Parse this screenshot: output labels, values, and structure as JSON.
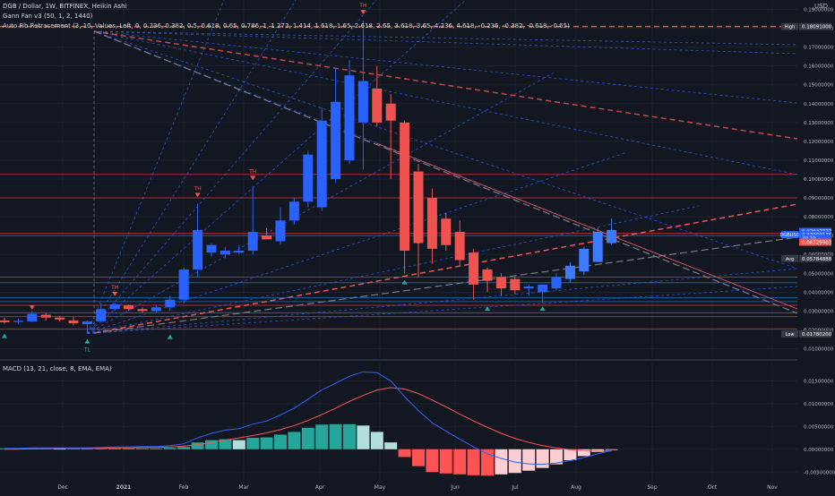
{
  "header": {
    "symbol_line": "DGB / Dollar, 1W, BITFINEX, Heikin Ashi",
    "gann_line": "Gann Fan v3 (50, 1, 2, 1440)",
    "fib_line": "Auto Fib Retracement (3, 10, Values, Left, 0, 0.236, 0.382, 0.5, 0.618, 0.65, 0.786, 1, 1.272, 1.414, 1.618, 1.65, 2.618, 2.65, 3.618, 3.65, 4.236, 4.618, -0.236, -0.382, -0.618, -0.65)",
    "macd_line": "MACD (13, 21, close, 8, EMA, EMA)",
    "currency": "USD"
  },
  "colors": {
    "background": "#131722",
    "up": "#2962ff",
    "up_bright": "#3d7bff",
    "down": "#ef5350",
    "grid": "#1e222d",
    "fib_red": "#b22833",
    "fib_blue": "#2196f3",
    "macd_line": "#2962ff",
    "signal_line": "#ff5252",
    "hist_up_strong": "#26a69a",
    "hist_up_weak": "#b2dfdb",
    "hist_down_strong": "#ff5252",
    "hist_down_weak": "#ffcdd2"
  },
  "chart_data": [
    {
      "type": "candlestick",
      "title": "DGB / Dollar, 1W, BITFINEX, Heikin Ashi",
      "x_ticks": [
        "Dec",
        "2021",
        "Feb",
        "Mar",
        "Apr",
        "May",
        "Jun",
        "Jul",
        "Aug",
        "Sep",
        "Oct",
        "Nov"
      ],
      "y_ticks": [
        "0.19000000",
        "0.18000000",
        "0.17000000",
        "0.16000000",
        "0.15000000",
        "0.14000000",
        "0.13000000",
        "0.12000000",
        "0.11000000",
        "0.10000000",
        "0.09000000",
        "0.08000000",
        "0.07000000",
        "0.06000000",
        "0.05000000",
        "0.04000000",
        "0.03000000",
        "0.02000000",
        "0.01000000"
      ],
      "ylim": [
        0.005,
        0.195
      ],
      "candles": [
        {
          "o": 0.025,
          "h": 0.0265,
          "l": 0.0232,
          "c": 0.024
        },
        {
          "o": 0.0242,
          "h": 0.026,
          "l": 0.023,
          "c": 0.0248
        },
        {
          "o": 0.0245,
          "h": 0.03,
          "l": 0.024,
          "c": 0.0285
        },
        {
          "o": 0.028,
          "h": 0.029,
          "l": 0.025,
          "c": 0.0265
        },
        {
          "o": 0.0265,
          "h": 0.0275,
          "l": 0.0245,
          "c": 0.0255
        },
        {
          "o": 0.025,
          "h": 0.0268,
          "l": 0.0225,
          "c": 0.0235
        },
        {
          "o": 0.023,
          "h": 0.025,
          "l": 0.018,
          "c": 0.0245
        },
        {
          "o": 0.0245,
          "h": 0.034,
          "l": 0.024,
          "c": 0.031
        },
        {
          "o": 0.031,
          "h": 0.0345,
          "l": 0.03,
          "c": 0.0335
        },
        {
          "o": 0.033,
          "h": 0.0335,
          "l": 0.03,
          "c": 0.031
        },
        {
          "o": 0.031,
          "h": 0.032,
          "l": 0.029,
          "c": 0.03
        },
        {
          "o": 0.03,
          "h": 0.033,
          "l": 0.029,
          "c": 0.032
        },
        {
          "o": 0.032,
          "h": 0.038,
          "l": 0.03,
          "c": 0.036
        },
        {
          "o": 0.036,
          "h": 0.053,
          "l": 0.034,
          "c": 0.052
        },
        {
          "o": 0.052,
          "h": 0.087,
          "l": 0.048,
          "c": 0.073
        },
        {
          "o": 0.061,
          "h": 0.066,
          "l": 0.059,
          "c": 0.065
        },
        {
          "o": 0.06,
          "h": 0.064,
          "l": 0.058,
          "c": 0.062
        },
        {
          "o": 0.061,
          "h": 0.065,
          "l": 0.06,
          "c": 0.062
        },
        {
          "o": 0.062,
          "h": 0.096,
          "l": 0.06,
          "c": 0.072
        },
        {
          "o": 0.07,
          "h": 0.074,
          "l": 0.069,
          "c": 0.068
        },
        {
          "o": 0.067,
          "h": 0.085,
          "l": 0.065,
          "c": 0.078
        },
        {
          "o": 0.078,
          "h": 0.09,
          "l": 0.076,
          "c": 0.088
        },
        {
          "o": 0.088,
          "h": 0.115,
          "l": 0.085,
          "c": 0.113
        },
        {
          "o": 0.085,
          "h": 0.138,
          "l": 0.083,
          "c": 0.131
        },
        {
          "o": 0.1,
          "h": 0.159,
          "l": 0.098,
          "c": 0.141
        },
        {
          "o": 0.11,
          "h": 0.163,
          "l": 0.108,
          "c": 0.155
        },
        {
          "o": 0.13,
          "h": 0.184,
          "l": 0.105,
          "c": 0.152
        },
        {
          "o": 0.148,
          "h": 0.16,
          "l": 0.128,
          "c": 0.13
        },
        {
          "o": 0.14,
          "h": 0.145,
          "l": 0.1,
          "c": 0.131
        },
        {
          "o": 0.13,
          "h": 0.131,
          "l": 0.05,
          "c": 0.062
        },
        {
          "o": 0.104,
          "h": 0.108,
          "l": 0.048,
          "c": 0.066
        },
        {
          "o": 0.09,
          "h": 0.095,
          "l": 0.055,
          "c": 0.063
        },
        {
          "o": 0.079,
          "h": 0.082,
          "l": 0.062,
          "c": 0.065
        },
        {
          "o": 0.072,
          "h": 0.078,
          "l": 0.054,
          "c": 0.057
        },
        {
          "o": 0.061,
          "h": 0.063,
          "l": 0.036,
          "c": 0.044
        },
        {
          "o": 0.052,
          "h": 0.053,
          "l": 0.04,
          "c": 0.046
        },
        {
          "o": 0.048,
          "h": 0.05,
          "l": 0.038,
          "c": 0.042
        },
        {
          "o": 0.047,
          "h": 0.048,
          "l": 0.039,
          "c": 0.041
        },
        {
          "o": 0.042,
          "h": 0.044,
          "l": 0.038,
          "c": 0.043
        },
        {
          "o": 0.04,
          "h": 0.044,
          "l": 0.034,
          "c": 0.044
        },
        {
          "o": 0.042,
          "h": 0.05,
          "l": 0.041,
          "c": 0.048
        },
        {
          "o": 0.047,
          "h": 0.056,
          "l": 0.045,
          "c": 0.054
        },
        {
          "o": 0.051,
          "h": 0.064,
          "l": 0.049,
          "c": 0.063
        },
        {
          "o": 0.056,
          "h": 0.074,
          "l": 0.056,
          "c": 0.072
        },
        {
          "o": 0.066,
          "h": 0.079,
          "l": 0.065,
          "c": 0.073
        }
      ],
      "fib_levels_red": [
        0.1809,
        0.1025,
        0.09,
        0.0712,
        0.048,
        0.033,
        0.029,
        0.027,
        0.0205
      ],
      "fib_levels_blue": [
        0.07,
        0.045,
        0.037,
        0.035
      ],
      "price_labels": [
        {
          "text": "High",
          "value": "0.18091000",
          "color": "#ffffff",
          "bg": "#363a45"
        },
        {
          "text": "",
          "value": "0.07047777",
          "color": "#ffffff",
          "bg": "#2962ff"
        },
        {
          "text": "DGBUSD",
          "value": "0.07069175",
          "color": "#ffffff",
          "bg": "#2962ff"
        },
        {
          "text": "",
          "value": "2d 1h",
          "color": "#ffffff",
          "bg": "#2962ff"
        },
        {
          "text": "",
          "value": "0.06729903",
          "color": "#ffffff",
          "bg": "#ef5350"
        },
        {
          "text": "Avg",
          "value": "0.05784888",
          "color": "#ffffff",
          "bg": "#363a45"
        },
        {
          "text": "Low",
          "value": "0.01780200",
          "color": "#ffffff",
          "bg": "#363a45"
        }
      ],
      "annotations": [
        {
          "label": "TH",
          "candle": 26,
          "value": 0.184
        },
        {
          "label": "TH",
          "candle": 18,
          "value": 0.096
        },
        {
          "label": "TH",
          "candle": 14,
          "value": 0.087
        },
        {
          "label": "TH",
          "candle": 8,
          "value": 0.0345
        },
        {
          "label": "TL",
          "candle": 6,
          "value": 0.018
        }
      ]
    },
    {
      "type": "line+bar",
      "title": "MACD (13, 21, close, 8, EMA, EMA)",
      "y_ticks": [
        "0.01500000",
        "0.01000000",
        "0.00500000",
        "0.00000000",
        "-0.00500000"
      ],
      "ylim": [
        -0.0075,
        0.019
      ],
      "macd": [
        0.0002,
        0.0002,
        0.0003,
        0.0003,
        0.0003,
        0.0003,
        0.0003,
        0.0004,
        0.0005,
        0.0005,
        0.0006,
        0.0006,
        0.0008,
        0.0012,
        0.0025,
        0.0035,
        0.0042,
        0.0045,
        0.0055,
        0.0062,
        0.0075,
        0.009,
        0.011,
        0.013,
        0.0145,
        0.016,
        0.017,
        0.0168,
        0.015,
        0.0115,
        0.0085,
        0.0058,
        0.004,
        0.0022,
        0.0005,
        -0.001,
        -0.002,
        -0.0028,
        -0.0032,
        -0.0033,
        -0.003,
        -0.0025,
        -0.0018,
        -0.001,
        -0.0003
      ],
      "signal": [
        0.0,
        0.0,
        0.0001,
        0.0001,
        0.0002,
        0.0002,
        0.0002,
        0.0002,
        0.0003,
        0.0003,
        0.0004,
        0.0004,
        0.0005,
        0.0007,
        0.001,
        0.0015,
        0.002,
        0.0025,
        0.003,
        0.0036,
        0.0043,
        0.0052,
        0.0063,
        0.0076,
        0.009,
        0.0105,
        0.0118,
        0.013,
        0.0135,
        0.0132,
        0.0122,
        0.0108,
        0.0093,
        0.0077,
        0.0062,
        0.0048,
        0.0035,
        0.0024,
        0.0015,
        0.0008,
        0.0003,
        -0.0001,
        -0.0003,
        -0.0004,
        -0.0004
      ],
      "histogram": [
        0.0002,
        0.0002,
        0.0002,
        0.0002,
        0.0001,
        0.0001,
        0.0001,
        0.0002,
        0.0002,
        0.0002,
        0.0002,
        0.0002,
        0.0003,
        0.0005,
        0.0015,
        0.002,
        0.0022,
        0.002,
        0.0025,
        0.0026,
        0.0032,
        0.0038,
        0.0047,
        0.0054,
        0.0055,
        0.0055,
        0.0052,
        0.0038,
        0.0015,
        -0.0017,
        -0.0037,
        -0.005,
        -0.0053,
        -0.0055,
        -0.0057,
        -0.0058,
        -0.0055,
        -0.0052,
        -0.0047,
        -0.0041,
        -0.0033,
        -0.0024,
        -0.0015,
        -0.0006,
        -0.0001
      ]
    }
  ]
}
